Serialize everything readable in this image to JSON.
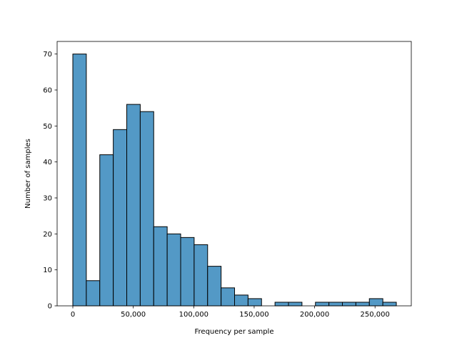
{
  "chart_data": {
    "type": "bar",
    "title": "",
    "xlabel": "Frequency per sample",
    "ylabel": "Number of samples",
    "xlim": [
      -13000,
      280000
    ],
    "ylim": [
      0,
      73.5
    ],
    "bin_start": 0,
    "bin_width": 11150,
    "counts": [
      70,
      7,
      42,
      49,
      56,
      54,
      22,
      20,
      19,
      17,
      11,
      5,
      3,
      2,
      0,
      1,
      1,
      0,
      1,
      1,
      1,
      1,
      2,
      1
    ],
    "x_ticks": [
      {
        "value": 0,
        "label": "0"
      },
      {
        "value": 50000,
        "label": "50,000"
      },
      {
        "value": 100000,
        "label": "100,000"
      },
      {
        "value": 150000,
        "label": "150,000"
      },
      {
        "value": 200000,
        "label": "200,000"
      },
      {
        "value": 250000,
        "label": "250,000"
      }
    ],
    "y_ticks": [
      {
        "value": 0,
        "label": "0"
      },
      {
        "value": 10,
        "label": "10"
      },
      {
        "value": 20,
        "label": "20"
      },
      {
        "value": 30,
        "label": "30"
      },
      {
        "value": 40,
        "label": "40"
      },
      {
        "value": 50,
        "label": "50"
      },
      {
        "value": 60,
        "label": "60"
      },
      {
        "value": 70,
        "label": "70"
      }
    ],
    "grid": false,
    "colors": {
      "bar_fill": "#5399c6",
      "bar_edge": "#000000"
    }
  }
}
